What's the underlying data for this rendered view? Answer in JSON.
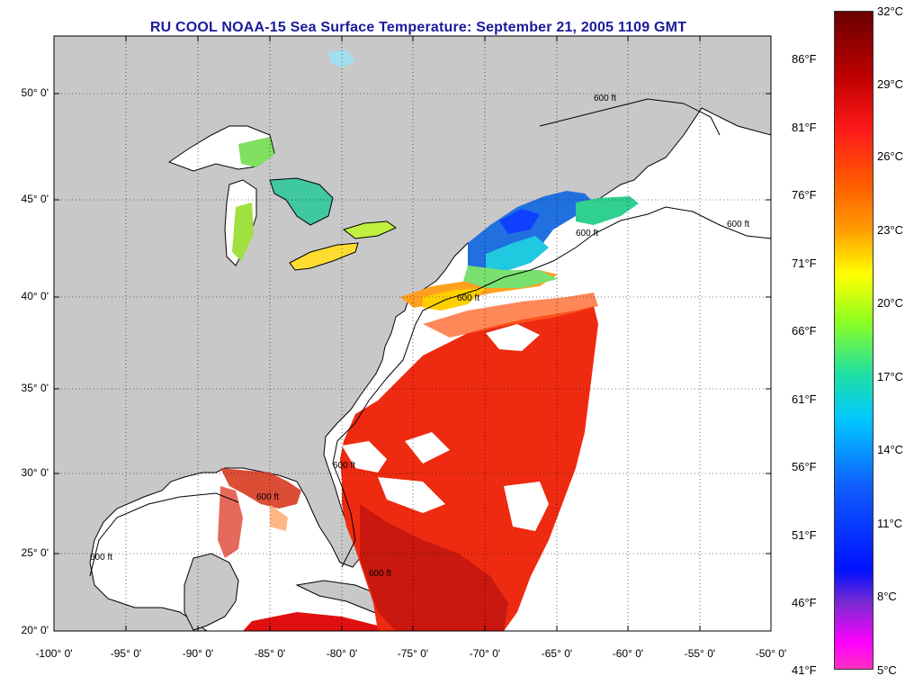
{
  "title": "RU COOL  NOAA-15  Sea Surface Temperature:  September 21, 2005 1109 GMT",
  "lat_labels": [
    "50° 0'",
    "45° 0'",
    "40° 0'",
    "35° 0'",
    "30° 0'",
    "25° 0'",
    "20° 0'"
  ],
  "lon_labels": [
    "-100° 0'",
    "-95° 0'",
    "-90° 0'",
    "-85° 0'",
    "-80° 0'",
    "-75° 0'",
    "-70° 0'",
    "-65° 0'",
    "-60° 0'",
    "-55° 0'",
    "-50° 0'"
  ],
  "contour_label": "600 ft",
  "colorbar": {
    "fahrenheit": [
      "86°F",
      "81°F",
      "76°F",
      "71°F",
      "66°F",
      "61°F",
      "56°F",
      "51°F",
      "46°F",
      "41°F"
    ],
    "celsius": [
      "32°C",
      "29°C",
      "26°C",
      "23°C",
      "20°C",
      "17°C",
      "14°C",
      "11°C",
      "8°C",
      "5°C"
    ]
  },
  "colors": {
    "land": "#c8c8c8",
    "ocean_no_data": "#ffffff",
    "title": "#1a1a9a"
  }
}
